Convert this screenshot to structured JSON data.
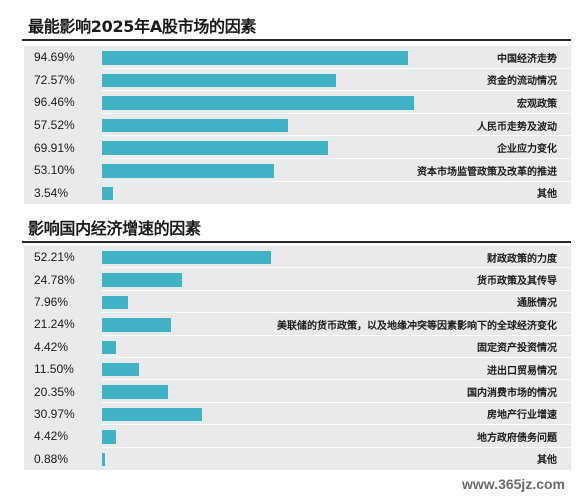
{
  "chart_data": [
    {
      "type": "bar",
      "orientation": "horizontal",
      "title": "最能影响2025年A股市场的因素",
      "categories": [
        "中国经济走势",
        "资金的流动情况",
        "宏观政策",
        "人民币走势及波动",
        "企业应力变化",
        "资本市场监管政策及改革的推进",
        "其他"
      ],
      "values": [
        94.69,
        72.57,
        96.46,
        57.52,
        69.91,
        53.1,
        3.54
      ],
      "value_labels": [
        "94.69%",
        "72.57%",
        "96.46%",
        "57.52%",
        "69.91%",
        "53.10%",
        "3.54%"
      ],
      "unit": "%",
      "xlim": [
        0,
        100
      ],
      "bar_color": "#3fb2c6",
      "background_color": "#e9eaec"
    },
    {
      "type": "bar",
      "orientation": "horizontal",
      "title": "影响国内经济增速的因素",
      "categories": [
        "财政政策的力度",
        "货币政策及其传导",
        "通胀情况",
        "美联储的货币政策，以及地缘冲突等因素影响下的全球经济变化",
        "固定资产投资情况",
        "进出口贸易情况",
        "国内消费市场的情况",
        "房地产行业增速",
        "地方政府债务问题",
        "其他"
      ],
      "values": [
        52.21,
        24.78,
        7.96,
        21.24,
        4.42,
        11.5,
        20.35,
        30.97,
        4.42,
        0.88
      ],
      "value_labels": [
        "52.21%",
        "24.78%",
        "7.96%",
        "21.24%",
        "4.42%",
        "11.50%",
        "20.35%",
        "30.97%",
        "4.42%",
        "0.88%"
      ],
      "unit": "%",
      "xlim": [
        0,
        100
      ],
      "bar_color": "#3fb2c6",
      "background_color": "#e9eaec"
    }
  ],
  "watermark": "www.365jz.com"
}
